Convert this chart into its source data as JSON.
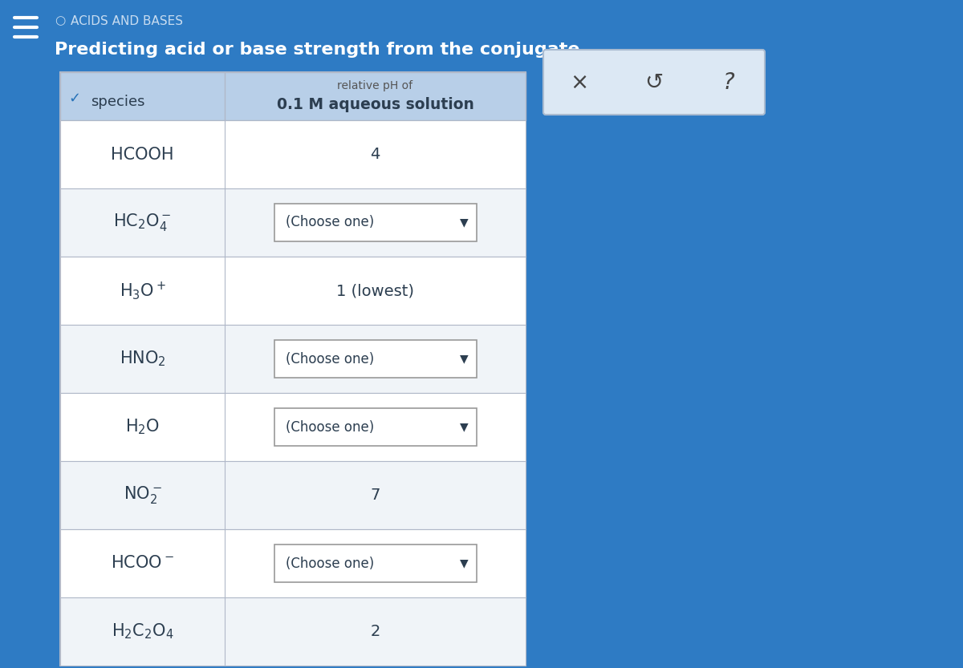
{
  "title_line1": "○  ACIDS AND BASES",
  "title_line2": "Predicting acid or base strength from the conjugate",
  "header_col1": "species",
  "header_col2_top": "relative pH of",
  "header_col2_bottom": "0.1 M aqueous solution",
  "rows": [
    {
      "species": "HCOOH",
      "value": "4",
      "is_dropdown": false
    },
    {
      "species": "$\\mathrm{HC_2O_4^-}$",
      "value": "(Choose one)",
      "is_dropdown": true
    },
    {
      "species": "$\\mathrm{H_3O^+}$",
      "value": "1 (lowest)",
      "is_dropdown": false
    },
    {
      "species": "$\\mathrm{HNO_2}$",
      "value": "(Choose one)",
      "is_dropdown": true
    },
    {
      "species": "$\\mathrm{H_2O}$",
      "value": "(Choose one)",
      "is_dropdown": true
    },
    {
      "species": "$\\mathrm{NO_2^-}$",
      "value": "7",
      "is_dropdown": false
    },
    {
      "species": "$\\mathrm{HCOO^-}$",
      "value": "(Choose one)",
      "is_dropdown": true
    },
    {
      "species": "$\\mathrm{H_2C_2O_4}$",
      "value": "2",
      "is_dropdown": false
    }
  ],
  "bg_color": "#2e7bc4",
  "table_bg": "#ffffff",
  "header_row_bg": "#b8cfe8",
  "row_bg_alt": "#f0f4f8",
  "row_bg_norm": "#ffffff",
  "grid_color": "#b0b8c8",
  "title1_color": "#c8dcf0",
  "title2_color": "#ffffff",
  "species_color": "#2c3e50",
  "value_color": "#2c3e50",
  "dropdown_border": "#999999",
  "dropdown_bg": "#ffffff",
  "right_panel_bg": "#dce8f4",
  "right_panel_border": "#aabbd0"
}
